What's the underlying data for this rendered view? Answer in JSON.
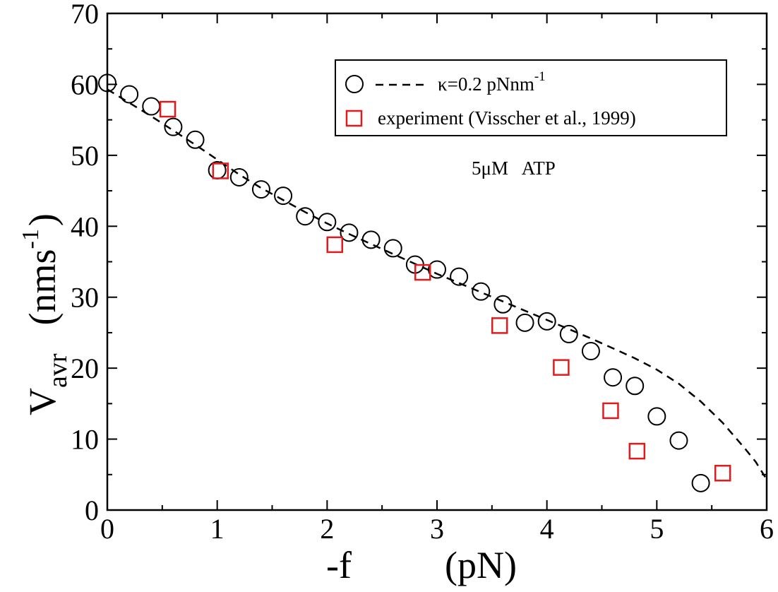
{
  "chart_data": {
    "type": "scatter",
    "xlabel_prefix": "-f",
    "xlabel_unit": "(pN)",
    "ylabel_main": "V",
    "ylabel_sub": "avr",
    "ylabel_unit": "(nms",
    "ylabel_unit_sup": "-1",
    "ylabel_unit_close": ")",
    "xlim": [
      0,
      6
    ],
    "ylim": [
      0,
      70
    ],
    "x_ticks": [
      "0",
      "1",
      "2",
      "3",
      "4",
      "5",
      "6"
    ],
    "y_ticks": [
      "0",
      "10",
      "20",
      "30",
      "40",
      "50",
      "60",
      "70"
    ],
    "annotation": "5μM   ATP",
    "legend": {
      "simulation_label": "κ=0.2 pNnm",
      "simulation_label_sup": "-1",
      "experiment_label": "experiment (Visscher et al., 1999)"
    },
    "series": [
      {
        "name": "simulation",
        "style": "circle",
        "color": "#000000",
        "x": [
          0.0,
          0.2,
          0.4,
          0.6,
          0.8,
          1.0,
          1.2,
          1.4,
          1.6,
          1.8,
          2.0,
          2.2,
          2.4,
          2.6,
          2.8,
          3.0,
          3.2,
          3.4,
          3.6,
          3.8,
          4.0,
          4.2,
          4.4,
          4.6,
          4.8,
          5.0,
          5.2,
          5.4
        ],
        "y": [
          60.2,
          58.6,
          56.9,
          54.0,
          52.2,
          47.9,
          46.9,
          45.2,
          44.3,
          41.4,
          40.6,
          39.1,
          38.1,
          36.9,
          34.6,
          33.9,
          32.9,
          30.8,
          29.0,
          26.4,
          26.6,
          24.8,
          22.4,
          18.7,
          17.5,
          13.2,
          9.8,
          3.8
        ]
      },
      {
        "name": "experiment (Visscher et al., 1999)",
        "style": "square",
        "color": "#e31a1c",
        "x": [
          0.55,
          1.03,
          2.07,
          2.87,
          3.57,
          4.13,
          4.58,
          4.82,
          5.6
        ],
        "y": [
          56.5,
          47.8,
          37.4,
          33.5,
          26.0,
          20.1,
          14.0,
          8.3,
          5.2
        ]
      },
      {
        "name": "model curve",
        "style": "dashed-line",
        "color": "#000000",
        "x": [
          0.0,
          0.2,
          0.4,
          0.6,
          0.8,
          1.0,
          1.2,
          1.4,
          1.6,
          1.8,
          2.0,
          2.2,
          2.4,
          2.6,
          2.8,
          3.0,
          3.2,
          3.4,
          3.6,
          3.8,
          4.0,
          4.2,
          4.4,
          4.6,
          4.8,
          5.0,
          5.2,
          5.4,
          5.6,
          5.8,
          5.9,
          6.0
        ],
        "y": [
          59.3,
          57.4,
          55.5,
          53.5,
          51.5,
          49.4,
          47.3,
          45.4,
          43.7,
          42.0,
          40.4,
          38.9,
          37.5,
          36.1,
          34.7,
          33.3,
          32.0,
          30.7,
          29.4,
          28.1,
          26.8,
          25.5,
          24.2,
          22.8,
          21.4,
          19.8,
          17.8,
          15.3,
          12.3,
          8.7,
          6.8,
          4.3
        ]
      }
    ]
  }
}
